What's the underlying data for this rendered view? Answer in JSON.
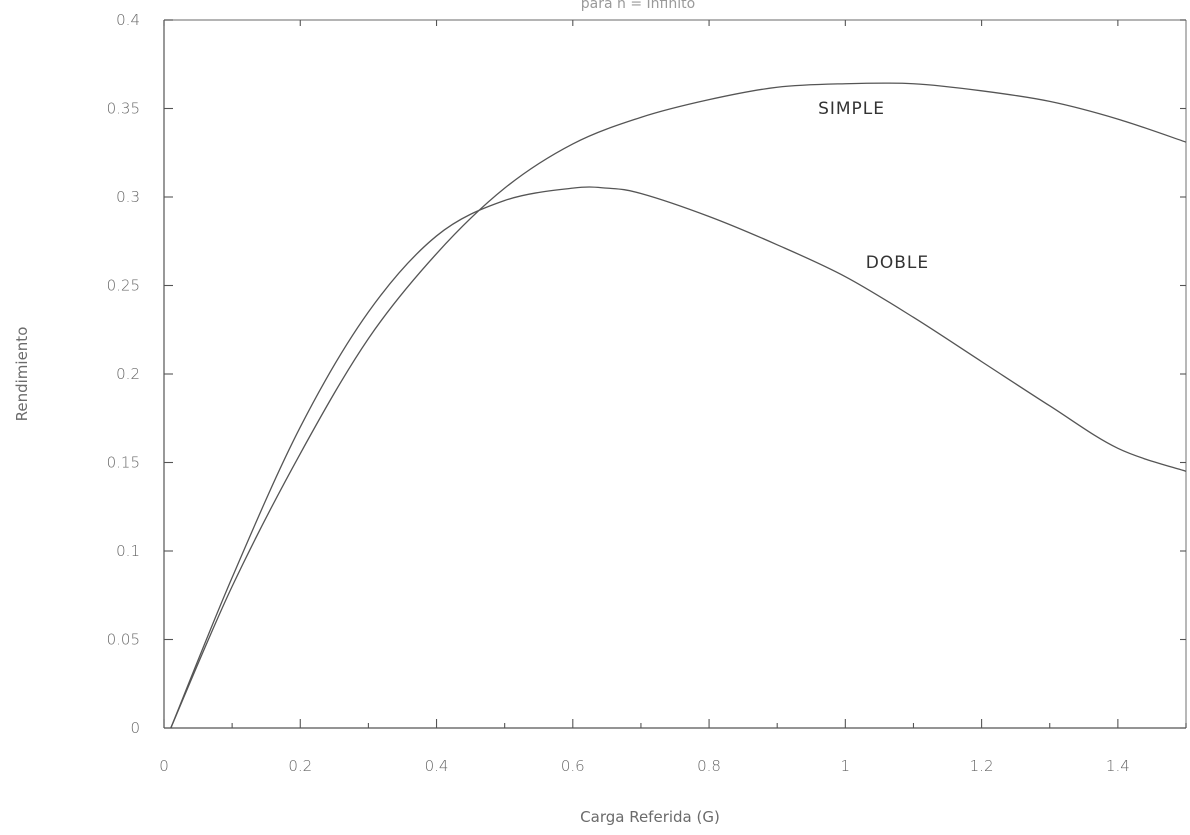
{
  "chart_data": {
    "type": "line",
    "title": "para n = Infinito",
    "xlabel": "Carga Referida (G)",
    "ylabel": "Rendimiento",
    "xlim": [
      0,
      1.5
    ],
    "ylim": [
      0,
      0.4
    ],
    "x_ticks": [
      "0",
      "0.2",
      "0.4",
      "0.6",
      "0.8",
      "1",
      "1.2",
      "1.4"
    ],
    "y_ticks": [
      "0",
      "0.05",
      "0.1",
      "0.15",
      "0.2",
      "0.25",
      "0.3",
      "0.35",
      "0.4"
    ],
    "grid": false,
    "series": [
      {
        "name": "SIMPLE",
        "x": [
          0.01,
          0.1,
          0.2,
          0.3,
          0.4,
          0.5,
          0.6,
          0.7,
          0.8,
          0.9,
          1.0,
          1.1,
          1.2,
          1.3,
          1.4,
          1.5
        ],
        "y": [
          0,
          0.08,
          0.155,
          0.22,
          0.268,
          0.305,
          0.33,
          0.345,
          0.355,
          0.362,
          0.364,
          0.364,
          0.36,
          0.354,
          0.344,
          0.331
        ]
      },
      {
        "name": "DOBLE",
        "x": [
          0.01,
          0.1,
          0.2,
          0.3,
          0.4,
          0.5,
          0.6,
          0.65,
          0.7,
          0.8,
          0.9,
          1.0,
          1.1,
          1.2,
          1.3,
          1.4,
          1.5
        ],
        "y": [
          0,
          0.085,
          0.17,
          0.235,
          0.278,
          0.298,
          0.305,
          0.305,
          0.302,
          0.289,
          0.273,
          0.255,
          0.232,
          0.207,
          0.182,
          0.158,
          0.145
        ]
      }
    ],
    "annotations": [
      {
        "text": "SIMPLE",
        "x": 0.96,
        "y": 0.347
      },
      {
        "text": "DOBLE",
        "x": 1.03,
        "y": 0.26
      }
    ]
  }
}
